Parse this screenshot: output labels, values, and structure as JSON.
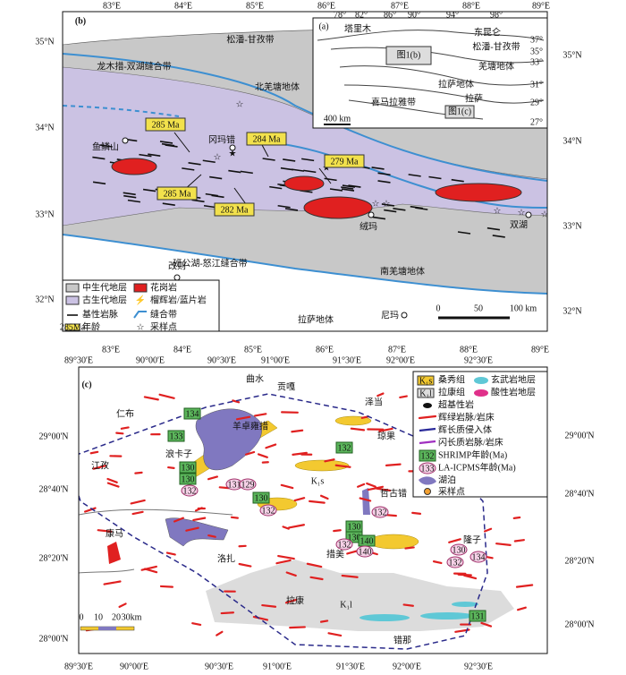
{
  "panel_b": {
    "label": "(b)",
    "lon_top": [
      "83°E",
      "84°E",
      "85°E",
      "86°E",
      "87°E",
      "88°E",
      "89°E"
    ],
    "lon_bottom": [
      "83°E",
      "84°E",
      "85°E",
      "86°E",
      "87°E",
      "88°E",
      "89°E"
    ],
    "lat_left": [
      "35°N",
      "34°N",
      "33°N",
      "32°N"
    ],
    "lat_right": [
      "35°N",
      "34°N",
      "33°N",
      "32°N"
    ],
    "place_labels": [
      "松潘-甘孜带",
      "龙木措-双湖缝合带",
      "北羌塘地体",
      "鱼鳞山",
      "冈玛错",
      "绒玛",
      "双湖",
      "改则",
      "班公湖-怒江缝合带",
      "南羌塘地体",
      "拉萨地体",
      "尼玛"
    ],
    "ages": [
      "285 Ma",
      "284 Ma",
      "279 Ma",
      "285 Ma",
      "282 Ma"
    ],
    "scale": [
      "0",
      "50",
      "100 km"
    ],
    "legend": [
      "中生代地层",
      "古生代地层",
      "基性岩脉",
      "年龄",
      "花岗岩",
      "榴辉岩/蓝片岩",
      "缝合带",
      "采样点"
    ],
    "legend_age_sample": "285Ma",
    "inset": {
      "label": "(a)",
      "lons": [
        "78°",
        "82°",
        "86°",
        "90°",
        "94°",
        "98°"
      ],
      "lats": [
        "37°",
        "35°",
        "33°",
        "31°",
        "29°",
        "27°"
      ],
      "labels": [
        "塔里木",
        "东昆仑",
        "松潘-甘孜带",
        "羌塘地体",
        "拉萨地体",
        "喜马拉雅带",
        "拉萨"
      ],
      "boxes": [
        "图1(b)",
        "图1(c)"
      ],
      "scale": "400 km"
    }
  },
  "panel_c": {
    "label": "(c)",
    "lon_top": [
      "89°30'E",
      "90°00'E",
      "90°30'E",
      "91°00'E",
      "91°30'E",
      "92°00'E",
      "92°30'E"
    ],
    "lon_bottom": [
      "89°30'E",
      "90°00'E",
      "90°30'E",
      "91°00'E",
      "91°30'E",
      "92°00'E",
      "92°30'E"
    ],
    "lat_left": [
      "29°00'N",
      "28°40'N",
      "28°20'N",
      "28°00'N"
    ],
    "lat_right": [
      "29°00'N",
      "28°40'N",
      "28°20'N",
      "28°00'N"
    ],
    "place_labels": [
      "仁布",
      "江孜",
      "康马",
      "曲水",
      "贡嘎",
      "泽当",
      "羊卓雍措",
      "琼果",
      "浪卡子",
      "哲古错",
      "洛扎",
      "措美",
      "隆子",
      "拉康",
      "错那"
    ],
    "unit_labels": [
      "K₁s",
      "K₁l"
    ],
    "ages_shrimp": [
      "134",
      "133",
      "130",
      "130",
      "130",
      "132",
      "130",
      "130",
      "140",
      "131"
    ],
    "ages_la": [
      "132",
      "131",
      "129",
      "132",
      "132",
      "132",
      "140",
      "130",
      "134",
      "132"
    ],
    "scale": [
      "0",
      "10",
      "20",
      "30km"
    ],
    "legend_units": [
      {
        "code": "K₁s",
        "text": "桑秀组"
      },
      {
        "code": "K₁l",
        "text": "拉康组"
      }
    ],
    "legend": [
      "玄武岩地层",
      "酸性岩地层",
      "超基性岩",
      "辉绿岩脉/岩床",
      "辉长质侵入体",
      "闪长质岩脉/岩床",
      "SHRIMP年龄(Ma)",
      "LA-ICPMS年龄(Ma)",
      "湖泊",
      "采样点"
    ],
    "legend_age_samples": [
      "132",
      "133"
    ]
  }
}
